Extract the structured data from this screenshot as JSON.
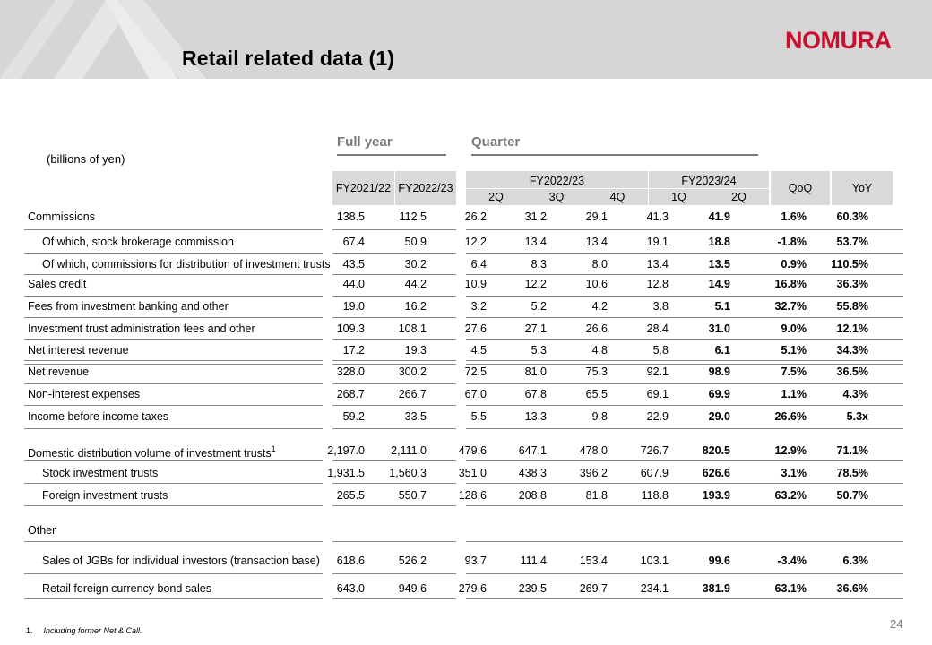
{
  "header": {
    "title": "Retail related data (1)",
    "logo": "NOMURA"
  },
  "units": "(billions of yen)",
  "sections": {
    "full_year": "Full year",
    "quarter": "Quarter"
  },
  "columns": {
    "full_year": [
      "FY2021/22",
      "FY2022/23"
    ],
    "quarter_groups": [
      "FY2022/23",
      "FY2023/24"
    ],
    "quarters": [
      "2Q",
      "3Q",
      "4Q",
      "1Q",
      "2Q"
    ],
    "qoq": "QoQ",
    "yoy": "YoY"
  },
  "rows": [
    {
      "label": "Commissions",
      "values": [
        "138.5",
        "112.5",
        "26.2",
        "31.2",
        "29.1",
        "41.3",
        "41.9",
        "1.6%",
        "60.3%"
      ]
    },
    {
      "label": "Of which, stock brokerage commission",
      "values": [
        "67.4",
        "50.9",
        "12.2",
        "13.4",
        "13.4",
        "19.1",
        "18.8",
        "-1.8%",
        "53.7%"
      ]
    },
    {
      "label": "Of which, commissions for distribution of investment trusts",
      "values": [
        "43.5",
        "30.2",
        "6.4",
        "8.3",
        "8.0",
        "13.4",
        "13.5",
        "0.9%",
        "110.5%"
      ]
    },
    {
      "label": "Sales credit",
      "values": [
        "44.0",
        "44.2",
        "10.9",
        "12.2",
        "10.6",
        "12.8",
        "14.9",
        "16.8%",
        "36.3%"
      ]
    },
    {
      "label": "Fees from investment banking and other",
      "values": [
        "19.0",
        "16.2",
        "3.2",
        "5.2",
        "4.2",
        "3.8",
        "5.1",
        "32.7%",
        "55.8%"
      ]
    },
    {
      "label": "Investment trust administration fees and other",
      "values": [
        "109.3",
        "108.1",
        "27.6",
        "27.1",
        "26.6",
        "28.4",
        "31.0",
        "9.0%",
        "12.1%"
      ]
    },
    {
      "label": "Net interest revenue",
      "values": [
        "17.2",
        "19.3",
        "4.5",
        "5.3",
        "4.8",
        "5.8",
        "6.1",
        "5.1%",
        "34.3%"
      ]
    },
    {
      "label": "Net revenue",
      "values": [
        "328.0",
        "300.2",
        "72.5",
        "81.0",
        "75.3",
        "92.1",
        "98.9",
        "7.5%",
        "36.5%"
      ]
    },
    {
      "label": "Non-interest expenses",
      "values": [
        "268.7",
        "266.7",
        "67.0",
        "67.8",
        "65.5",
        "69.1",
        "69.9",
        "1.1%",
        "4.3%"
      ]
    },
    {
      "label": "Income before income taxes",
      "values": [
        "59.2",
        "33.5",
        "5.5",
        "13.3",
        "9.8",
        "22.9",
        "29.0",
        "26.6%",
        "5.3x"
      ]
    },
    {
      "label": "Domestic distribution volume of investment trusts",
      "sup": "1",
      "values": [
        "2,197.0",
        "2,111.0",
        "479.6",
        "647.1",
        "478.0",
        "726.7",
        "820.5",
        "12.9%",
        "71.1%"
      ]
    },
    {
      "label": "Stock investment trusts",
      "values": [
        "1,931.5",
        "1,560.3",
        "351.0",
        "438.3",
        "396.2",
        "607.9",
        "626.6",
        "3.1%",
        "78.5%"
      ]
    },
    {
      "label": "Foreign investment trusts",
      "values": [
        "265.5",
        "550.7",
        "128.6",
        "208.8",
        "81.8",
        "118.8",
        "193.9",
        "63.2%",
        "50.7%"
      ]
    },
    {
      "label": "Other",
      "values": []
    },
    {
      "label": "Sales of JGBs for individual investors (transaction base)",
      "values": [
        "618.6",
        "526.2",
        "93.7",
        "111.4",
        "153.4",
        "103.1",
        "99.6",
        "-3.4%",
        "6.3%"
      ]
    },
    {
      "label": "Retail foreign currency bond sales",
      "values": [
        "643.0",
        "949.6",
        "279.6",
        "239.5",
        "269.7",
        "234.1",
        "381.9",
        "63.1%",
        "36.6%"
      ]
    }
  ],
  "footnote": {
    "number": "1.",
    "text": "Including former Net & Call."
  },
  "page_number": "24"
}
